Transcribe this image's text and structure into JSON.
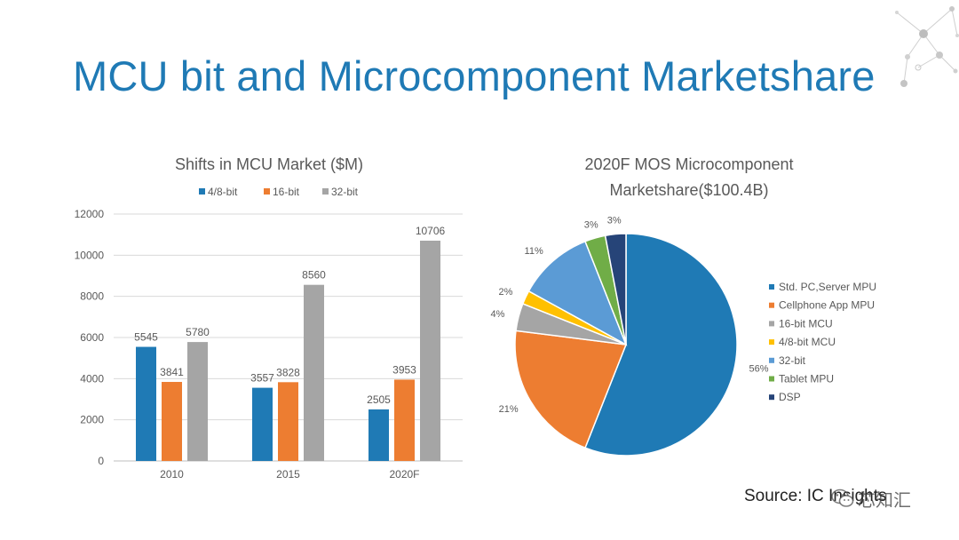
{
  "title": "MCU bit and Microcomponent Marketshare",
  "source": "Source: IC Insights",
  "watermark": "芯知汇",
  "colors": {
    "title": "#1f7ab5",
    "text": "#595959",
    "grid": "#d9d9d9",
    "axis": "#bfbfbf"
  },
  "chart_data": [
    {
      "type": "bar",
      "title": "Shifts in MCU Market ($M)",
      "categories": [
        "2010",
        "2015",
        "2020F"
      ],
      "series": [
        {
          "name": "4/8-bit",
          "color": "#1f7ab5",
          "values": [
            5545,
            3557,
            2505
          ]
        },
        {
          "name": "16-bit",
          "color": "#ed7d31",
          "values": [
            3841,
            3828,
            3953
          ]
        },
        {
          "name": "32-bit",
          "color": "#a5a5a5",
          "values": [
            5780,
            8560,
            10706
          ]
        }
      ],
      "yticks": [
        0,
        2000,
        4000,
        6000,
        8000,
        10000,
        12000
      ],
      "ylim": [
        0,
        12000
      ],
      "legend": "top",
      "grid": true
    },
    {
      "type": "pie",
      "title_lines": [
        "2020F MOS Microcomponent",
        "Marketshare($100.4B)"
      ],
      "slices": [
        {
          "name": "Std. PC,Server MPU",
          "value": 56,
          "label": "56%",
          "color": "#1f7ab5"
        },
        {
          "name": "Cellphone App MPU",
          "value": 21,
          "label": "21%",
          "color": "#ed7d31"
        },
        {
          "name": "16-bit MCU",
          "value": 4,
          "label": "4%",
          "color": "#a5a5a5"
        },
        {
          "name": "4/8-bit MCU",
          "value": 2,
          "label": "2%",
          "color": "#ffc000"
        },
        {
          "name": "32-bit",
          "value": 11,
          "label": "11%",
          "color": "#5b9bd5"
        },
        {
          "name": "Tablet MPU",
          "value": 3,
          "label": "3%",
          "color": "#70ad47"
        },
        {
          "name": "DSP",
          "value": 3,
          "label": "3%",
          "color": "#264478"
        }
      ],
      "legend": "right"
    }
  ]
}
